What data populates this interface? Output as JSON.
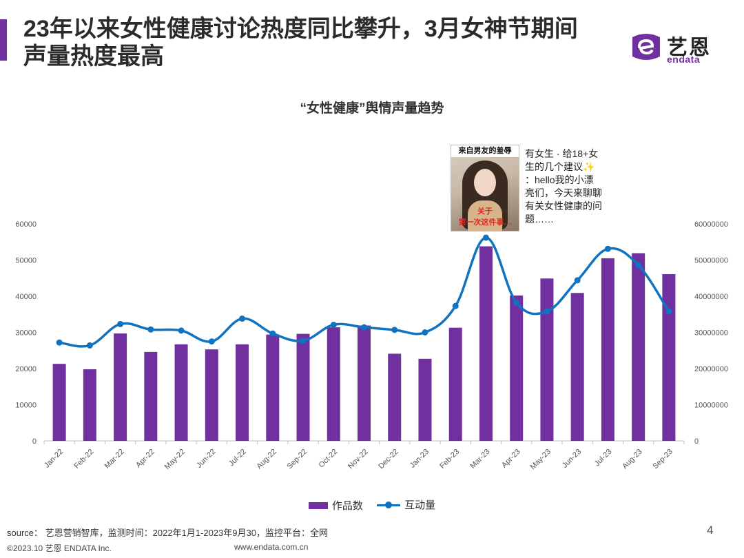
{
  "header": {
    "title": "23年以来女性健康讨论热度同比攀升，3月女神节期间声量热度最高",
    "logo_cn": "艺恩",
    "logo_en": "endata"
  },
  "colors": {
    "accent": "#7030a0",
    "line": "#0f73c2"
  },
  "annotation": {
    "image_caption_top": "来自男友的羞辱",
    "image_caption_bottom_1": "关于",
    "image_caption_bottom_2": "第一次这件事…",
    "text": "有女生 · 给18+女生的几个建议✨ ：hello我的小漂亮们，今天来聊聊有关女性健康的问题……"
  },
  "chart_data": {
    "type": "bar",
    "title": "“女性健康”舆情声量趋势",
    "categories": [
      "Jan-22",
      "Feb-22",
      "Mar-22",
      "Apr-22",
      "May-22",
      "Jun-22",
      "Jul-22",
      "Aug-22",
      "Sep-22",
      "Oct-22",
      "Nov-22",
      "Dec-22",
      "Jan-23",
      "Feb-23",
      "Mar-23",
      "Apr-23",
      "May-23",
      "Jun-23",
      "Jul-23",
      "Aug-23",
      "Sep-23"
    ],
    "series": [
      {
        "name": "作品数",
        "type": "bar",
        "axis": "left",
        "values": [
          21300,
          19800,
          29700,
          24600,
          26700,
          25300,
          26700,
          29400,
          29600,
          31400,
          31900,
          24100,
          22700,
          31300,
          53800,
          40200,
          44900,
          40900,
          50500,
          51900,
          46100
        ]
      },
      {
        "name": "互动量",
        "type": "line",
        "axis": "right",
        "values": [
          27200000,
          26400000,
          32300000,
          30800000,
          30500000,
          27500000,
          33800000,
          29700000,
          27700000,
          32100000,
          31400000,
          30700000,
          30000000,
          37300000,
          56200000,
          38200000,
          35800000,
          44400000,
          53100000,
          48600000,
          35800000
        ]
      }
    ],
    "y_left": {
      "min": 0,
      "max": 60000,
      "ticks": [
        "0",
        "10000",
        "20000",
        "30000",
        "40000",
        "50000",
        "60000"
      ]
    },
    "y_right": {
      "min": 0,
      "max": 60000000,
      "ticks": [
        "0",
        "10000000",
        "20000000",
        "30000000",
        "40000000",
        "50000000",
        "60000000"
      ]
    },
    "grid": false,
    "legend_position": "bottom"
  },
  "footer": {
    "source": "source： 艺恩营销智库，监测时间：2022年1月1-2023年9月30，监控平台：全网",
    "page_number": "4",
    "copyright": "©2023.10  艺恩 ENDATA Inc.",
    "website": "www.endata.com.cn"
  }
}
